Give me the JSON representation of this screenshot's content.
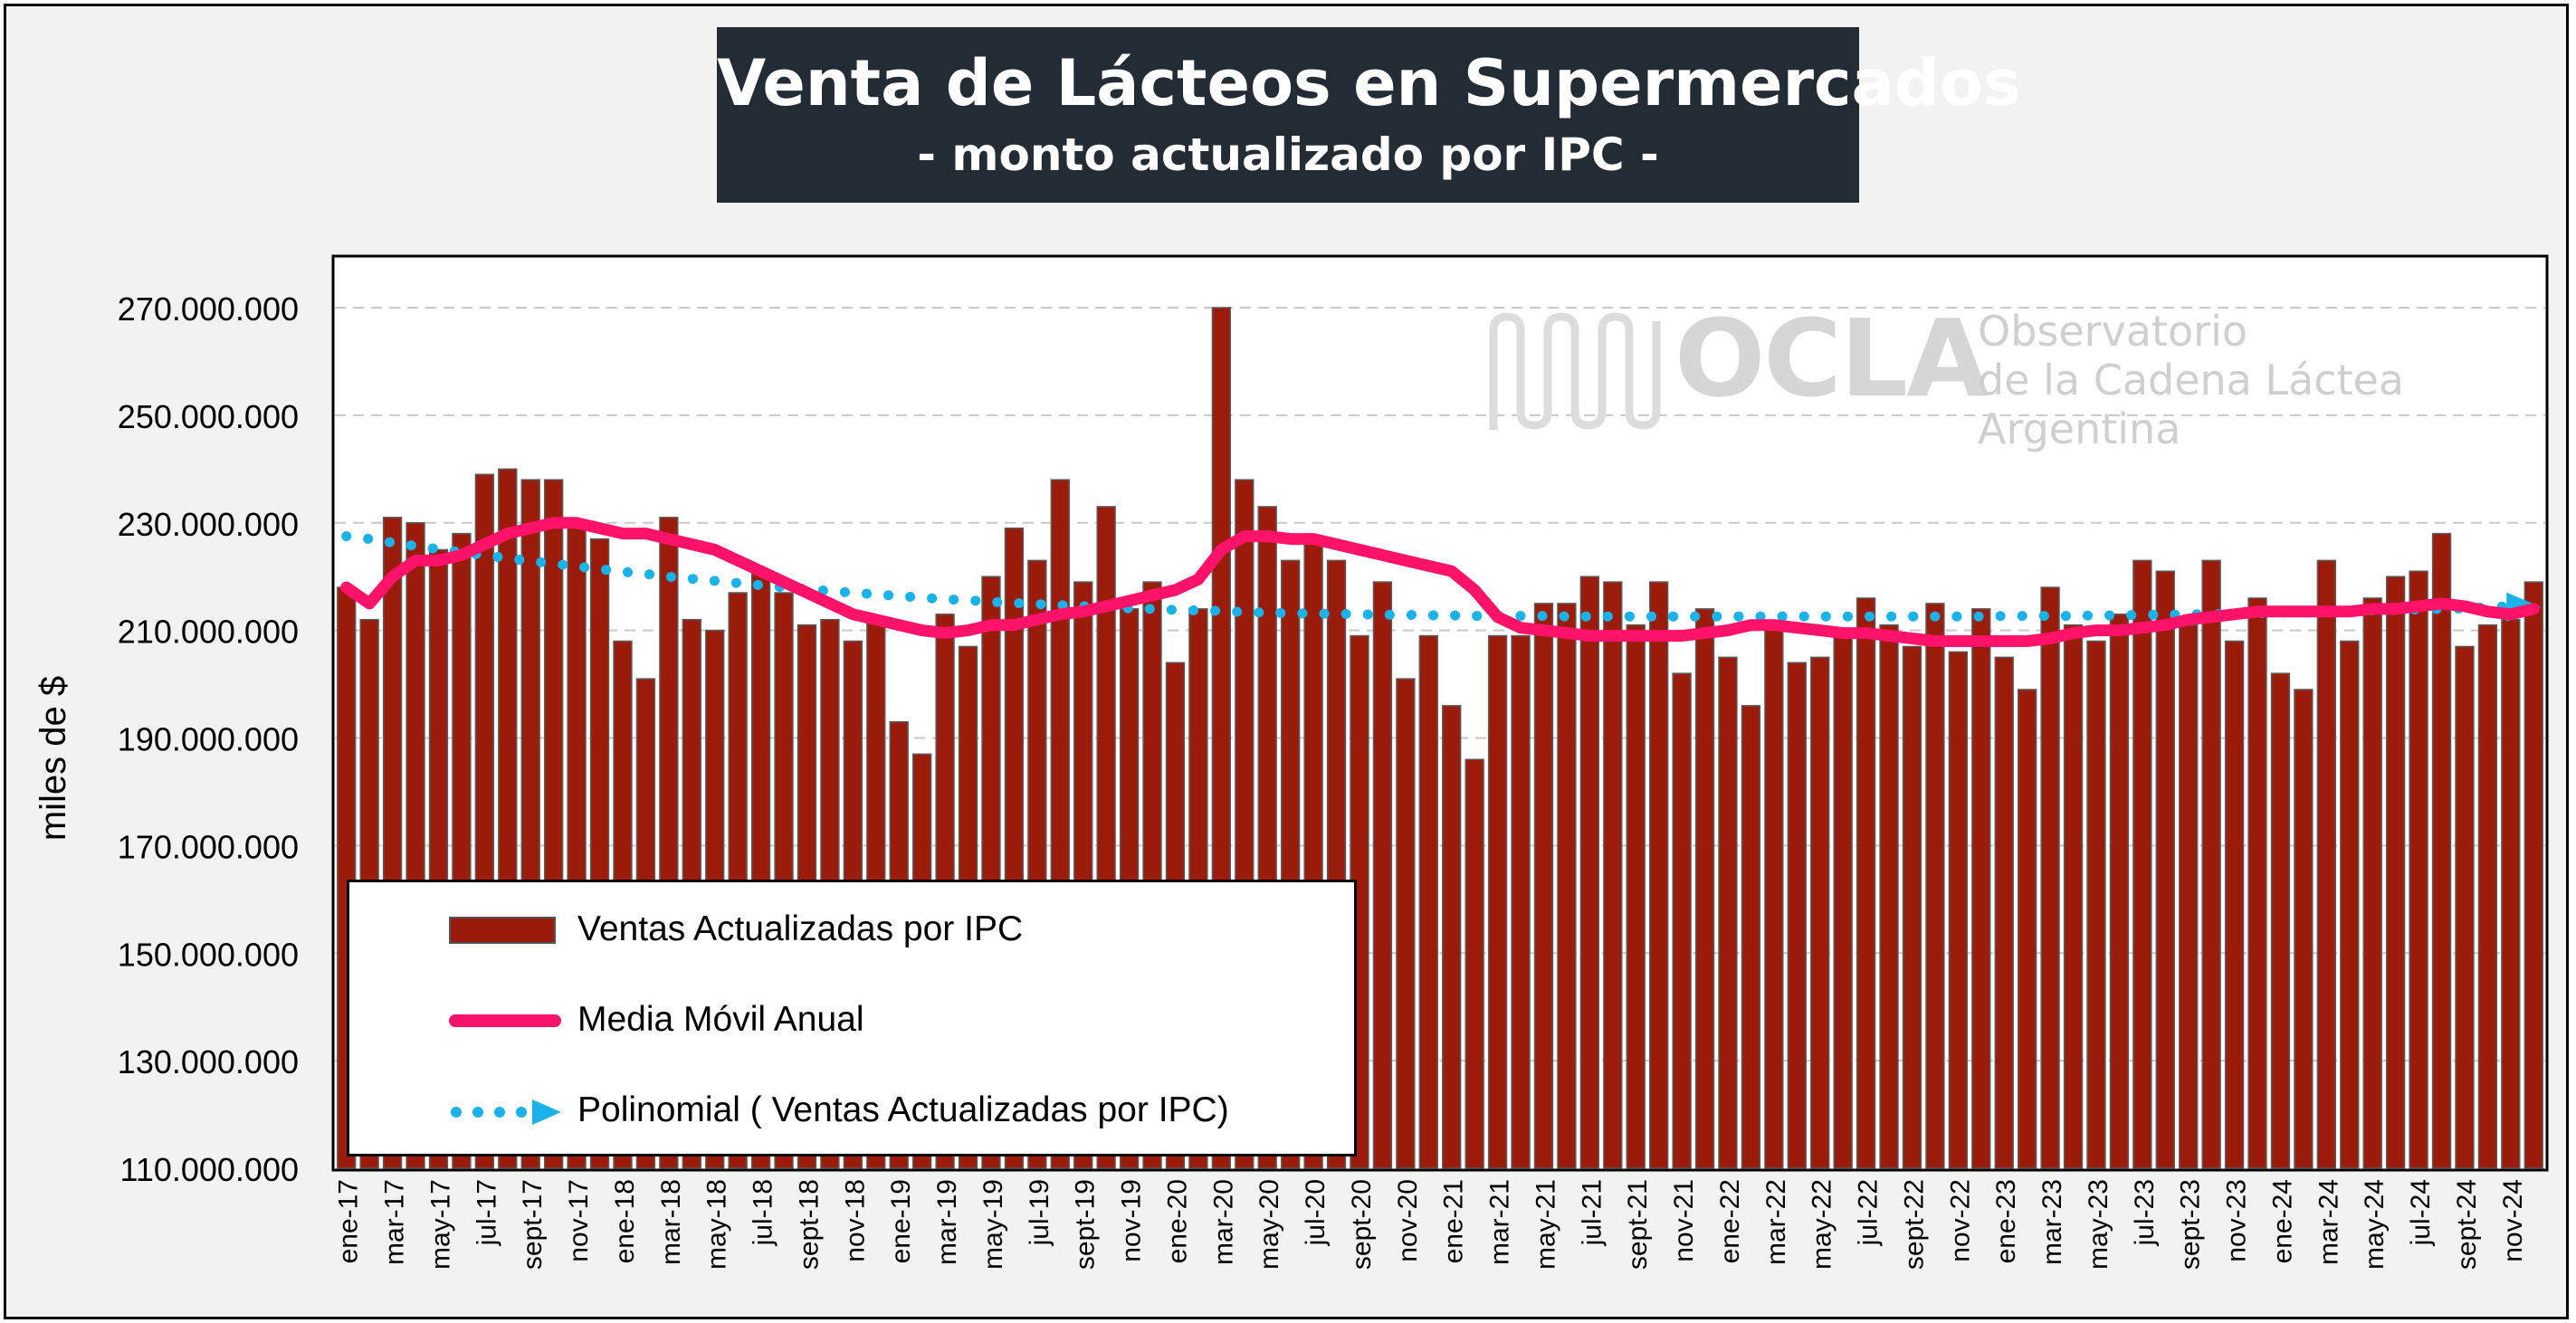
{
  "chart_data": {
    "type": "bar",
    "title": "Venta de Lácteos en Supermercados",
    "subtitle": "- monto actualizado por IPC -",
    "ylabel": "miles de $",
    "ylim": [
      110000000,
      270000000
    ],
    "yticks": [
      110000000,
      130000000,
      150000000,
      170000000,
      190000000,
      210000000,
      230000000,
      250000000,
      270000000
    ],
    "ytick_labels": [
      "110.000.000",
      "130.000.000",
      "150.000.000",
      "170.000.000",
      "190.000.000",
      "210.000.000",
      "230.000.000",
      "250.000.000",
      "270.000.000"
    ],
    "grid": "horizontal dashed",
    "legend_position": "bottom-left",
    "categories": [
      "ene-17",
      "feb-17",
      "mar-17",
      "abr-17",
      "may-17",
      "jun-17",
      "jul-17",
      "ago-17",
      "sept-17",
      "oct-17",
      "nov-17",
      "dic-17",
      "ene-18",
      "feb-18",
      "mar-18",
      "abr-18",
      "may-18",
      "jun-18",
      "jul-18",
      "ago-18",
      "sept-18",
      "oct-18",
      "nov-18",
      "dic-18",
      "ene-19",
      "feb-19",
      "mar-19",
      "abr-19",
      "may-19",
      "jun-19",
      "jul-19",
      "ago-19",
      "sept-19",
      "oct-19",
      "nov-19",
      "dic-19",
      "ene-20",
      "feb-20",
      "mar-20",
      "abr-20",
      "may-20",
      "jun-20",
      "jul-20",
      "ago-20",
      "sept-20",
      "oct-20",
      "nov-20",
      "dic-20",
      "ene-21",
      "feb-21",
      "mar-21",
      "abr-21",
      "may-21",
      "jun-21",
      "jul-21",
      "ago-21",
      "sept-21",
      "oct-21",
      "nov-21",
      "dic-21",
      "ene-22",
      "feb-22",
      "mar-22",
      "abr-22",
      "may-22",
      "jun-22",
      "jul-22",
      "ago-22",
      "sept-22",
      "oct-22",
      "nov-22",
      "dic-22",
      "ene-23",
      "feb-23",
      "mar-23",
      "abr-23",
      "may-23",
      "jun-23",
      "jul-23",
      "ago-23",
      "sept-23",
      "oct-23",
      "nov-23",
      "dic-23",
      "ene-24",
      "feb-24",
      "mar-24",
      "abr-24",
      "may-24",
      "jun-24",
      "jul-24",
      "ago-24",
      "sept-24",
      "oct-24",
      "nov-24",
      "dic-24"
    ],
    "xtick_labels": [
      "ene-17",
      "mar-17",
      "may-17",
      "jul-17",
      "sept-17",
      "nov-17",
      "ene-18",
      "mar-18",
      "may-18",
      "jul-18",
      "sept-18",
      "nov-18",
      "ene-19",
      "mar-19",
      "may-19",
      "jul-19",
      "sept-19",
      "nov-19",
      "ene-20",
      "mar-20",
      "may-20",
      "jul-20",
      "sept-20",
      "nov-20",
      "ene-21",
      "mar-21",
      "may-21",
      "jul-21",
      "sept-21",
      "nov-21",
      "ene-22",
      "mar-22",
      "may-22",
      "jul-22",
      "sept-22",
      "nov-22",
      "ene-23",
      "mar-23",
      "may-23",
      "jul-23",
      "sept-23",
      "nov-23",
      "ene-24",
      "mar-24",
      "may-24",
      "jul-24",
      "sept-24",
      "nov-24"
    ],
    "series": [
      {
        "name": "Ventas Actualizadas por IPC",
        "kind": "bar",
        "color": "#9c1c0c",
        "values": [
          218000000,
          212000000,
          231000000,
          230000000,
          225000000,
          228000000,
          239000000,
          240000000,
          238000000,
          238000000,
          230000000,
          227000000,
          208000000,
          201000000,
          231000000,
          212000000,
          210000000,
          217000000,
          221000000,
          217000000,
          211000000,
          212000000,
          208000000,
          212000000,
          193000000,
          187000000,
          213000000,
          207000000,
          220000000,
          229000000,
          223000000,
          238000000,
          219000000,
          233000000,
          214000000,
          219000000,
          204000000,
          214000000,
          270000000,
          238000000,
          233000000,
          223000000,
          227000000,
          223000000,
          209000000,
          219000000,
          201000000,
          209000000,
          196000000,
          186000000,
          209000000,
          209000000,
          215000000,
          215000000,
          220000000,
          219000000,
          211000000,
          219000000,
          202000000,
          214000000,
          205000000,
          196000000,
          211000000,
          204000000,
          205000000,
          210000000,
          216000000,
          211000000,
          207000000,
          215000000,
          206000000,
          214000000,
          205000000,
          199000000,
          218000000,
          211000000,
          208000000,
          213000000,
          223000000,
          221000000,
          211000000,
          223000000,
          208000000,
          216000000,
          202000000,
          199000000,
          223000000,
          208000000,
          216000000,
          220000000,
          221000000,
          228000000,
          207000000,
          211000000,
          212000000,
          219000000
        ]
      },
      {
        "name": "Media Móvil Anual",
        "kind": "line",
        "color": "#ff1269",
        "values": [
          218000000,
          215000000,
          220000000,
          223000000,
          223000000,
          224000000,
          226000000,
          228000000,
          229000000,
          230000000,
          230000000,
          229000000,
          228000000,
          228000000,
          227000000,
          226000000,
          225000000,
          223000000,
          221000000,
          219000000,
          217000000,
          215000000,
          213000000,
          212000000,
          211000000,
          210000000,
          209500000,
          210000000,
          211000000,
          211000000,
          212000000,
          213000000,
          213500000,
          214500000,
          215500000,
          216500000,
          217500000,
          219500000,
          225000000,
          227500000,
          227500000,
          227000000,
          227000000,
          226000000,
          225000000,
          224000000,
          223000000,
          222000000,
          221000000,
          217500000,
          212500000,
          210500000,
          210000000,
          209500000,
          209000000,
          209000000,
          209000000,
          209000000,
          209000000,
          209500000,
          210000000,
          211000000,
          211000000,
          210500000,
          210000000,
          209500000,
          209500000,
          209000000,
          208500000,
          208000000,
          208000000,
          208000000,
          208000000,
          208000000,
          208500000,
          209500000,
          210000000,
          210000000,
          210500000,
          211000000,
          212000000,
          212500000,
          213000000,
          213500000,
          213500000,
          213500000,
          213500000,
          213500000,
          214000000,
          214000000,
          214500000,
          215000000,
          214500000,
          213500000,
          213000000,
          214000000
        ]
      },
      {
        "name": "Polinomial ( Ventas Actualizadas por IPC)",
        "kind": "trendline",
        "color": "#1ab2e8",
        "values": [
          227500000,
          227000000,
          226300000,
          225700000,
          225100000,
          224500000,
          224000000,
          223400000,
          222900000,
          222400000,
          221900000,
          221400000,
          220900000,
          220500000,
          220000000,
          219600000,
          219200000,
          218800000,
          218400000,
          218000000,
          217700000,
          217300000,
          217000000,
          216700000,
          216400000,
          216100000,
          215800000,
          215600000,
          215300000,
          215100000,
          214900000,
          214700000,
          214500000,
          214300000,
          214100000,
          214000000,
          213800000,
          213700000,
          213600000,
          213400000,
          213300000,
          213200000,
          213100000,
          213100000,
          213000000,
          212900000,
          212900000,
          212800000,
          212800000,
          212700000,
          212700000,
          212700000,
          212700000,
          212600000,
          212600000,
          212600000,
          212600000,
          212600000,
          212600000,
          212600000,
          212600000,
          212600000,
          212600000,
          212600000,
          212600000,
          212600000,
          212600000,
          212600000,
          212600000,
          212600000,
          212600000,
          212600000,
          212700000,
          212700000,
          212700000,
          212700000,
          212800000,
          212800000,
          212900000,
          212900000,
          213000000,
          213000000,
          213100000,
          213200000,
          213300000,
          213400000,
          213500000,
          213600000,
          213700000,
          213800000,
          213900000,
          214000000,
          214100000,
          214300000,
          214500000,
          214700000
        ]
      }
    ]
  },
  "watermark": {
    "brand": "OCLA",
    "line1": "Observatorio",
    "line2": "de la Cadena Láctea",
    "line3": "Argentina"
  }
}
